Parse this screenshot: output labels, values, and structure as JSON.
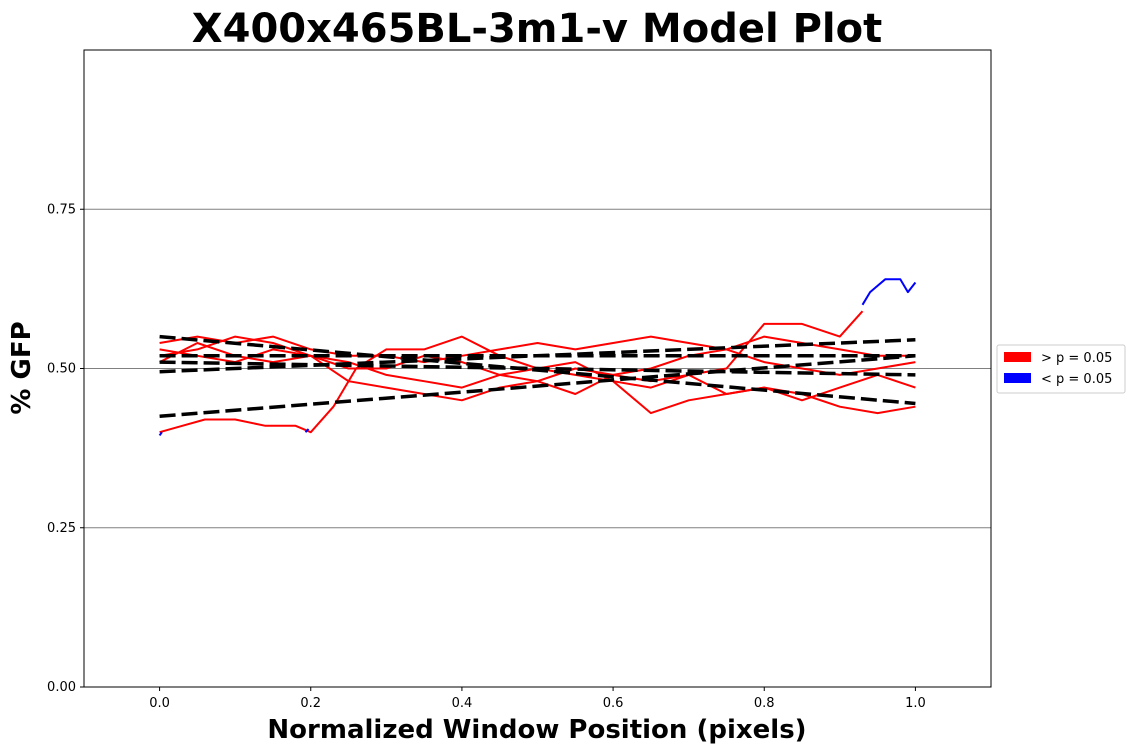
{
  "chart_data": {
    "type": "line",
    "title": "X400x465BL-3m1-v Model Plot",
    "xlabel": "Normalized Window Position (pixels)",
    "ylabel": "% GFP",
    "xlim": [
      -0.1,
      1.1
    ],
    "ylim": [
      0.0,
      1.0
    ],
    "xticks": [
      {
        "value": 0.0,
        "label": "0.0"
      },
      {
        "value": 0.2,
        "label": "0.2"
      },
      {
        "value": 0.4,
        "label": "0.4"
      },
      {
        "value": 0.6,
        "label": "0.6"
      },
      {
        "value": 0.8,
        "label": "0.8"
      },
      {
        "value": 1.0,
        "label": "1.0"
      }
    ],
    "yticks": [
      {
        "value": 0.0,
        "label": "0.00"
      },
      {
        "value": 0.25,
        "label": "0.25"
      },
      {
        "value": 0.5,
        "label": "0.50"
      },
      {
        "value": 0.75,
        "label": "0.75"
      }
    ],
    "grid": "horizontal",
    "legend_position": "right",
    "colors": {
      "not_significant": "#ff0000",
      "significant": "#0000ff",
      "fit": "#000000",
      "grid": "#808080"
    },
    "legend": [
      {
        "label": "> p = 0.05",
        "color": "#ff0000"
      },
      {
        "label": "< p = 0.05",
        "color": "#0000ff"
      }
    ],
    "series": [
      {
        "color": "#ff0000",
        "x": [
          0.0,
          0.05,
          0.1,
          0.15,
          0.2,
          0.25,
          0.3,
          0.35,
          0.4,
          0.45,
          0.5,
          0.55,
          0.6,
          0.65,
          0.7,
          0.75,
          0.8,
          0.85,
          0.9,
          0.95,
          1.0
        ],
        "y": [
          0.54,
          0.55,
          0.54,
          0.55,
          0.53,
          0.52,
          0.52,
          0.51,
          0.52,
          0.53,
          0.54,
          0.53,
          0.54,
          0.55,
          0.54,
          0.53,
          0.55,
          0.54,
          0.53,
          0.52,
          0.52
        ]
      },
      {
        "color": "#ff0000",
        "x": [
          0.0,
          0.05,
          0.1,
          0.15,
          0.2,
          0.25,
          0.3,
          0.35,
          0.4,
          0.45,
          0.5,
          0.55,
          0.6,
          0.65,
          0.7,
          0.75,
          0.8,
          0.85,
          0.9,
          0.93
        ],
        "y": [
          0.53,
          0.52,
          0.51,
          0.53,
          0.52,
          0.51,
          0.49,
          0.48,
          0.47,
          0.49,
          0.48,
          0.5,
          0.49,
          0.48,
          0.49,
          0.5,
          0.57,
          0.57,
          0.55,
          0.59
        ]
      },
      {
        "color": "#0000ff",
        "x": [
          0.93,
          0.94,
          0.95,
          0.96,
          0.97,
          0.98,
          0.99,
          1.0
        ],
        "y": [
          0.6,
          0.62,
          0.63,
          0.64,
          0.64,
          0.64,
          0.62,
          0.635
        ]
      },
      {
        "color": "#ff0000",
        "x": [
          0.0,
          0.05,
          0.1,
          0.15,
          0.2,
          0.25,
          0.3,
          0.35,
          0.4,
          0.45,
          0.5,
          0.55,
          0.6,
          0.65,
          0.7,
          0.75,
          0.8,
          0.85,
          0.9,
          0.95,
          1.0
        ],
        "y": [
          0.52,
          0.53,
          0.55,
          0.54,
          0.52,
          0.5,
          0.5,
          0.52,
          0.51,
          0.49,
          0.5,
          0.49,
          0.48,
          0.47,
          0.49,
          0.46,
          0.47,
          0.46,
          0.44,
          0.43,
          0.44
        ]
      },
      {
        "color": "#ff0000",
        "x": [
          0.0,
          0.05,
          0.1,
          0.15,
          0.2,
          0.25,
          0.3,
          0.35,
          0.4,
          0.45,
          0.5,
          0.55,
          0.6,
          0.65,
          0.7,
          0.75,
          0.8,
          0.85,
          0.9,
          0.95,
          1.0
        ],
        "y": [
          0.51,
          0.54,
          0.52,
          0.51,
          0.52,
          0.48,
          0.47,
          0.46,
          0.45,
          0.47,
          0.48,
          0.46,
          0.49,
          0.5,
          0.52,
          0.53,
          0.51,
          0.5,
          0.49,
          0.5,
          0.51
        ]
      },
      {
        "color": "#ff0000",
        "x": [
          0.0,
          0.03,
          0.06,
          0.1,
          0.14,
          0.18,
          0.2,
          0.23,
          0.26,
          0.3,
          0.35,
          0.4,
          0.45,
          0.5,
          0.55,
          0.6,
          0.65,
          0.7,
          0.75,
          0.8,
          0.85,
          0.9,
          0.95,
          1.0
        ],
        "y": [
          0.4,
          0.41,
          0.42,
          0.42,
          0.41,
          0.41,
          0.4,
          0.44,
          0.5,
          0.53,
          0.53,
          0.55,
          0.52,
          0.5,
          0.51,
          0.48,
          0.43,
          0.45,
          0.46,
          0.47,
          0.45,
          0.47,
          0.49,
          0.47
        ]
      },
      {
        "color": "#0000ff",
        "x": [
          0.0,
          0.003
        ],
        "y": [
          0.395,
          0.4
        ]
      },
      {
        "color": "#0000ff",
        "x": [
          0.193,
          0.197
        ],
        "y": [
          0.4,
          0.405
        ]
      }
    ],
    "fits": [
      {
        "x": [
          0.0,
          1.0
        ],
        "y": [
          0.55,
          0.445
        ]
      },
      {
        "x": [
          0.0,
          1.0
        ],
        "y": [
          0.495,
          0.545
        ]
      },
      {
        "x": [
          0.0,
          1.0
        ],
        "y": [
          0.52,
          0.52
        ]
      },
      {
        "x": [
          0.0,
          1.0
        ],
        "y": [
          0.51,
          0.49
        ]
      },
      {
        "x": [
          0.0,
          1.0
        ],
        "y": [
          0.425,
          0.52
        ]
      }
    ]
  }
}
